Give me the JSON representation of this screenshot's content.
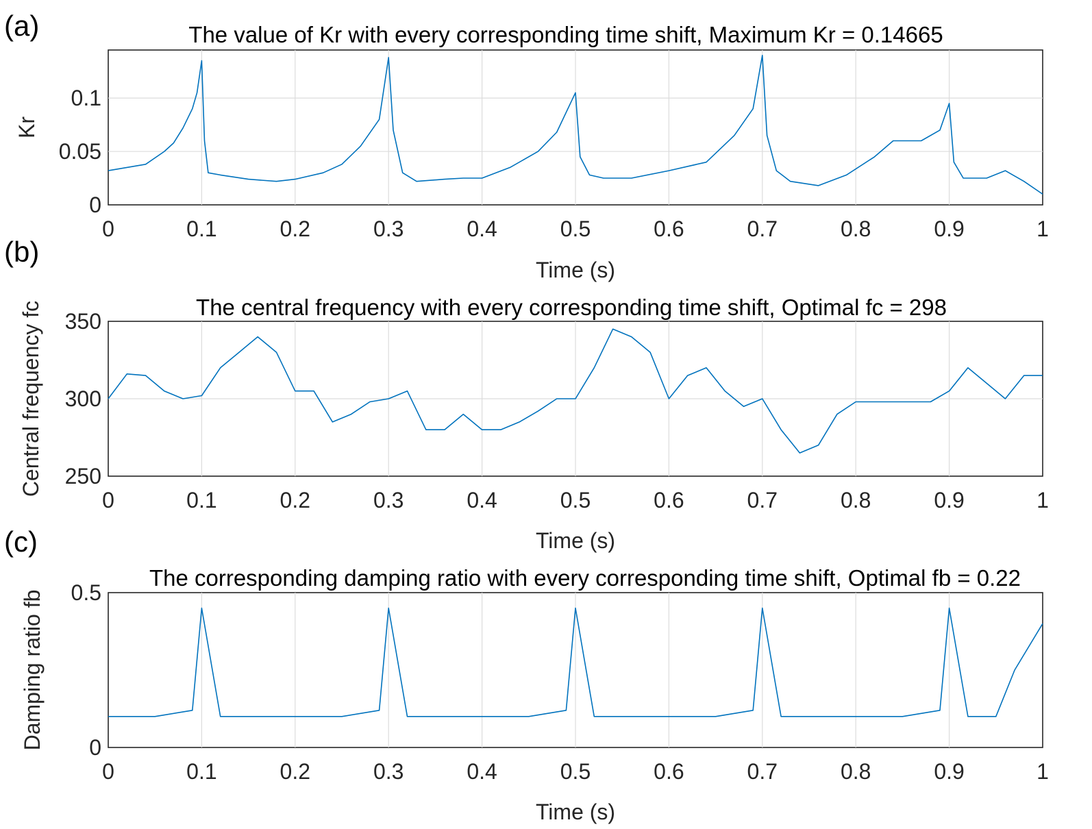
{
  "chart_data": [
    {
      "type": "line",
      "panel_label": "(a)",
      "title": "The value of Kr with every corresponding time shift, Maximum Kr = 0.14665",
      "xlabel": "Time (s)",
      "ylabel": "Kr",
      "xlim": [
        0,
        1
      ],
      "ylim": [
        0,
        0.145
      ],
      "xticks": [
        0,
        0.1,
        0.2,
        0.3,
        0.4,
        0.5,
        0.6,
        0.7,
        0.8,
        0.9,
        1
      ],
      "xtick_labels": [
        "0",
        "0.1",
        "0.2",
        "0.3",
        "0.4",
        "0.5",
        "0.6",
        "0.7",
        "0.8",
        "0.9",
        "1"
      ],
      "yticks": [
        0,
        0.05,
        0.1
      ],
      "ytick_labels": [
        "0",
        "0.05",
        "0.1"
      ],
      "grid": true,
      "color": "#0072BD",
      "series": [
        {
          "x": [
            0,
            0.02,
            0.04,
            0.06,
            0.07,
            0.08,
            0.09,
            0.095,
            0.1,
            0.103,
            0.107,
            0.12,
            0.15,
            0.18,
            0.2,
            0.23,
            0.25,
            0.27,
            0.29,
            0.3,
            0.305,
            0.315,
            0.33,
            0.36,
            0.38,
            0.4,
            0.43,
            0.46,
            0.48,
            0.5,
            0.505,
            0.515,
            0.53,
            0.56,
            0.6,
            0.64,
            0.67,
            0.69,
            0.7,
            0.705,
            0.715,
            0.73,
            0.76,
            0.79,
            0.82,
            0.84,
            0.87,
            0.89,
            0.9,
            0.905,
            0.915,
            0.94,
            0.96,
            0.98,
            1
          ],
          "y": [
            0.032,
            0.035,
            0.038,
            0.05,
            0.058,
            0.072,
            0.09,
            0.105,
            0.135,
            0.06,
            0.03,
            0.028,
            0.024,
            0.022,
            0.024,
            0.03,
            0.038,
            0.055,
            0.08,
            0.138,
            0.07,
            0.03,
            0.022,
            0.024,
            0.025,
            0.025,
            0.035,
            0.05,
            0.068,
            0.105,
            0.045,
            0.028,
            0.025,
            0.025,
            0.032,
            0.04,
            0.065,
            0.09,
            0.14,
            0.065,
            0.032,
            0.022,
            0.018,
            0.028,
            0.045,
            0.06,
            0.06,
            0.07,
            0.095,
            0.04,
            0.025,
            0.025,
            0.032,
            0.022,
            0.01
          ]
        }
      ]
    },
    {
      "type": "line",
      "panel_label": "(b)",
      "title": "The central frequency with every corresponding time shift, Optimal fc = 298",
      "xlabel": "Time (s)",
      "ylabel": "Central frequency fc",
      "xlim": [
        0,
        1
      ],
      "ylim": [
        250,
        350
      ],
      "xticks": [
        0,
        0.1,
        0.2,
        0.3,
        0.4,
        0.5,
        0.6,
        0.7,
        0.8,
        0.9,
        1
      ],
      "xtick_labels": [
        "0",
        "0.1",
        "0.2",
        "0.3",
        "0.4",
        "0.5",
        "0.6",
        "0.7",
        "0.8",
        "0.9",
        "1"
      ],
      "yticks": [
        250,
        300,
        350
      ],
      "ytick_labels": [
        "250",
        "300",
        "350"
      ],
      "grid": true,
      "color": "#0072BD",
      "series": [
        {
          "x": [
            0,
            0.02,
            0.04,
            0.06,
            0.08,
            0.1,
            0.12,
            0.14,
            0.16,
            0.18,
            0.2,
            0.22,
            0.24,
            0.26,
            0.28,
            0.3,
            0.32,
            0.34,
            0.36,
            0.38,
            0.4,
            0.42,
            0.44,
            0.46,
            0.48,
            0.5,
            0.52,
            0.54,
            0.56,
            0.58,
            0.6,
            0.62,
            0.64,
            0.66,
            0.68,
            0.7,
            0.72,
            0.74,
            0.76,
            0.78,
            0.8,
            0.82,
            0.84,
            0.86,
            0.88,
            0.9,
            0.92,
            0.94,
            0.96,
            0.98,
            1
          ],
          "y": [
            300,
            316,
            315,
            305,
            300,
            302,
            320,
            330,
            340,
            330,
            305,
            305,
            285,
            290,
            298,
            300,
            305,
            280,
            280,
            290,
            280,
            280,
            285,
            292,
            300,
            300,
            320,
            345,
            340,
            330,
            300,
            315,
            320,
            305,
            295,
            300,
            280,
            265,
            270,
            290,
            298,
            298,
            298,
            298,
            298,
            305,
            320,
            310,
            300,
            315,
            315
          ]
        }
      ]
    },
    {
      "type": "line",
      "panel_label": "(c)",
      "title": "The corresponding damping ratio with every corresponding time shift, Optimal fb = 0.22",
      "xlabel": "Time (s)",
      "ylabel": "Damping ratio fb",
      "xlim": [
        0,
        1
      ],
      "ylim": [
        0,
        0.5
      ],
      "xticks": [
        0,
        0.1,
        0.2,
        0.3,
        0.4,
        0.5,
        0.6,
        0.7,
        0.8,
        0.9,
        1
      ],
      "xtick_labels": [
        "0",
        "0.1",
        "0.2",
        "0.3",
        "0.4",
        "0.5",
        "0.6",
        "0.7",
        "0.8",
        "0.9",
        "1"
      ],
      "yticks": [
        0,
        0.5
      ],
      "ytick_labels": [
        "0",
        "0.5"
      ],
      "grid": true,
      "color": "#0072BD",
      "series": [
        {
          "x": [
            0,
            0.05,
            0.09,
            0.1,
            0.12,
            0.15,
            0.18,
            0.2,
            0.25,
            0.29,
            0.3,
            0.32,
            0.35,
            0.38,
            0.4,
            0.45,
            0.49,
            0.5,
            0.52,
            0.55,
            0.58,
            0.6,
            0.65,
            0.69,
            0.7,
            0.72,
            0.75,
            0.78,
            0.8,
            0.85,
            0.89,
            0.9,
            0.92,
            0.95,
            0.97,
            1
          ],
          "y": [
            0.1,
            0.1,
            0.12,
            0.45,
            0.1,
            0.1,
            0.1,
            0.1,
            0.1,
            0.12,
            0.45,
            0.1,
            0.1,
            0.1,
            0.1,
            0.1,
            0.12,
            0.45,
            0.1,
            0.1,
            0.1,
            0.1,
            0.1,
            0.12,
            0.45,
            0.1,
            0.1,
            0.1,
            0.1,
            0.1,
            0.12,
            0.45,
            0.1,
            0.1,
            0.25,
            0.4
          ]
        }
      ]
    }
  ]
}
